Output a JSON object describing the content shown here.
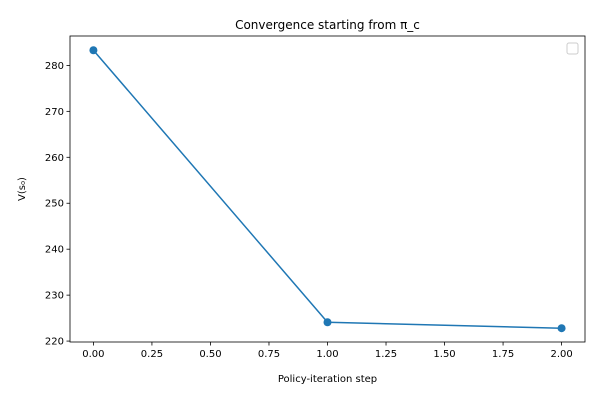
{
  "chart_data": {
    "type": "line",
    "title": "Convergence starting from π_c",
    "xlabel": "Policy-iteration step",
    "ylabel": "V(s₀)",
    "x": [
      0,
      1,
      2
    ],
    "series": [
      {
        "values": [
          283.3,
          224.1,
          222.8
        ],
        "color": "#1f77b4"
      }
    ],
    "xlim": [
      -0.1,
      2.1
    ],
    "ylim": [
      219.8,
      286.4
    ],
    "xticks": [
      "0.00",
      "0.25",
      "0.50",
      "0.75",
      "1.00",
      "1.25",
      "1.50",
      "1.75",
      "2.00"
    ],
    "yticks": [
      "220",
      "230",
      "240",
      "250",
      "260",
      "270",
      "280"
    ],
    "grid": false,
    "legend": {
      "position": "top-right",
      "entries": []
    }
  }
}
